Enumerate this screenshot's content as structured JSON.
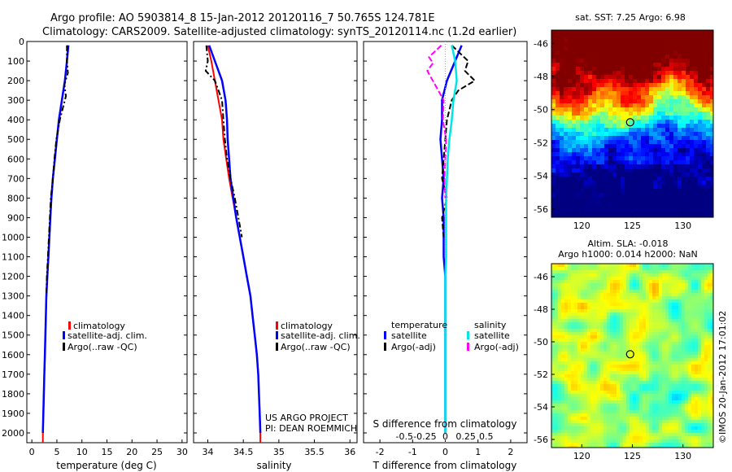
{
  "header": {
    "line1": "Argo profile: AO 5903814_8 15-Jan-2012 20120116_7 50.765S 124.781E",
    "line2": "Climatology: CARS2009. Satellite-adjusted climatology: synTS_20120114.nc (1.2d earlier)"
  },
  "colors": {
    "climatology": "#ff0000",
    "satellite": "#0000ff",
    "argo": "#000000",
    "salinity_satellite": "#00e5e5",
    "salinity_argo": "#ff00ff"
  },
  "depth_ticks": [
    "0",
    "100",
    "200",
    "300",
    "400",
    "500",
    "600",
    "700",
    "800",
    "900",
    "1000",
    "1100",
    "1200",
    "1300",
    "1400",
    "1500",
    "1600",
    "1700",
    "1800",
    "1900",
    "2000"
  ],
  "panels": {
    "temperature": {
      "xlabel": "temperature (deg C)",
      "xticks": [
        "0",
        "5",
        "10",
        "15",
        "20",
        "25",
        "30"
      ],
      "legend": [
        "climatology",
        "satellite-adj. clim.",
        "Argo(..raw -QC)"
      ]
    },
    "salinity": {
      "xlabel": "salinity",
      "xticks": [
        "34",
        "34.5",
        "35",
        "35.5",
        "36"
      ],
      "legend": [
        "climatology",
        "satellite-adj. clim.",
        "Argo(..raw -QC)"
      ],
      "credit1": "US ARGO PROJECT",
      "credit2": "PI: DEAN ROEMMICH"
    },
    "difference": {
      "xlabel": "T difference from climatology",
      "xticks": [
        "-2",
        "-1",
        "0",
        "1",
        "2"
      ],
      "top_label": "S difference from climatology",
      "top_ticks": [
        "-0.5",
        "-0.25",
        "0",
        "0.25",
        "0.5"
      ],
      "legend_t_title": "temperature",
      "legend_s_title": "salinity",
      "legend_t": [
        "satellite",
        "Argo(-adj)"
      ],
      "legend_s": [
        "satellite",
        "Argo(-adj)"
      ]
    }
  },
  "maps": {
    "sst_title": "sat. SST: 7.25  Argo: 6.98",
    "sla_title1": "Altim. SLA: -0.018",
    "sla_title2": "Argo h1000: 0.014  h2000: NaN",
    "lat_ticks": [
      "-46",
      "-48",
      "-50",
      "-52",
      "-54",
      "-56"
    ],
    "lon_ticks": [
      "120",
      "125",
      "130"
    ],
    "marker": {
      "lat": -50.765,
      "lon": 124.781
    }
  },
  "footer": "©IMOS 20-Jan-2012 17:01:02",
  "chart_data": [
    {
      "type": "line",
      "title": "",
      "xlabel": "temperature (deg C)",
      "ylabel": "",
      "xlim": [
        -1,
        31
      ],
      "ylim": [
        2050,
        0
      ],
      "series": [
        {
          "name": "climatology",
          "x": [
            7.2,
            7.0,
            6.6,
            6.0,
            5.5,
            5.0,
            4.6,
            4.2,
            3.9,
            3.7,
            3.5,
            3.3,
            3.1,
            2.9,
            2.8,
            2.7,
            2.6,
            2.5,
            2.4,
            2.3,
            2.2,
            2.2
          ],
          "y": [
            20,
            100,
            200,
            300,
            400,
            500,
            600,
            700,
            800,
            900,
            1000,
            1100,
            1200,
            1300,
            1400,
            1500,
            1600,
            1700,
            1800,
            1900,
            2000,
            2050
          ]
        },
        {
          "name": "satellite-adj. clim.",
          "x": [
            7.3,
            7.0,
            6.6,
            6.0,
            5.4,
            5.0,
            4.6,
            4.2,
            3.9,
            3.7,
            3.5,
            3.3,
            3.1,
            2.9,
            2.8,
            2.7,
            2.6,
            2.5,
            2.4,
            2.3,
            2.2
          ],
          "y": [
            20,
            100,
            200,
            300,
            400,
            500,
            600,
            700,
            800,
            900,
            1000,
            1100,
            1200,
            1300,
            1400,
            1500,
            1600,
            1700,
            1800,
            1900,
            2000
          ]
        },
        {
          "name": "Argo(..raw -QC)",
          "x": [
            7.0,
            7.0,
            7.2,
            6.5,
            6.8,
            5.6,
            4.9,
            4.5,
            4.2,
            3.8,
            3.6,
            3.4,
            3.2,
            3.0,
            2.9
          ],
          "y": [
            20,
            100,
            160,
            220,
            280,
            400,
            500,
            600,
            700,
            800,
            900,
            1000,
            1100,
            1200,
            1300
          ]
        }
      ]
    },
    {
      "type": "line",
      "title": "",
      "xlabel": "salinity",
      "ylabel": "",
      "xlim": [
        33.8,
        36.1
      ],
      "ylim": [
        2050,
        0
      ],
      "series": [
        {
          "name": "climatology",
          "x": [
            34.0,
            34.05,
            34.1,
            34.15,
            34.2,
            34.22,
            34.26,
            34.3,
            34.35,
            34.4,
            34.45,
            34.5,
            34.55,
            34.6,
            34.63,
            34.66,
            34.69,
            34.71,
            34.72,
            34.73,
            34.74,
            34.74
          ],
          "y": [
            20,
            100,
            200,
            300,
            400,
            500,
            600,
            700,
            800,
            900,
            1000,
            1100,
            1200,
            1300,
            1400,
            1500,
            1600,
            1700,
            1800,
            1900,
            2000,
            2050
          ]
        },
        {
          "name": "satellite-adj. clim.",
          "x": [
            34.02,
            34.1,
            34.2,
            34.25,
            34.27,
            34.28,
            34.3,
            34.32,
            34.36,
            34.4,
            34.45,
            34.5,
            34.55,
            34.6,
            34.63,
            34.66,
            34.69,
            34.71,
            34.72,
            34.73,
            34.74
          ],
          "y": [
            20,
            100,
            200,
            300,
            400,
            500,
            600,
            700,
            800,
            900,
            1000,
            1100,
            1200,
            1300,
            1400,
            1500,
            1600,
            1700,
            1800,
            1900,
            2000
          ]
        },
        {
          "name": "Argo(..raw -QC)",
          "x": [
            33.98,
            34.0,
            33.97,
            34.1,
            34.2,
            34.22,
            34.24,
            34.27,
            34.32,
            34.38,
            34.43,
            34.48
          ],
          "y": [
            20,
            100,
            150,
            200,
            300,
            400,
            500,
            600,
            700,
            800,
            900,
            1000
          ]
        }
      ]
    },
    {
      "type": "line",
      "title": "",
      "xlabel": "T difference from climatology",
      "ylabel": "",
      "xlim": [
        -2.5,
        2.5
      ],
      "ylim": [
        2050,
        0
      ],
      "series": [
        {
          "name": "temperature satellite",
          "x": [
            0.5,
            0.3,
            0.05,
            -0.1,
            -0.1,
            -0.15,
            -0.1,
            -0.05,
            -0.1,
            -0.05,
            -0.05,
            -0.05,
            0,
            0,
            0,
            0,
            0,
            0,
            0,
            0,
            0
          ],
          "y": [
            20,
            100,
            200,
            300,
            400,
            500,
            600,
            700,
            800,
            900,
            1000,
            1100,
            1200,
            1300,
            1400,
            1500,
            1600,
            1700,
            1800,
            1900,
            2000
          ]
        },
        {
          "name": "temperature Argo(-adj)",
          "x": [
            0.2,
            0.7,
            0.6,
            0.9,
            0.4,
            0.2,
            0.05,
            0.0,
            -0.05,
            -0.1,
            0.05,
            -0.1,
            -0.05
          ],
          "y": [
            20,
            100,
            150,
            200,
            250,
            300,
            400,
            500,
            600,
            700,
            800,
            900,
            1000
          ]
        },
        {
          "name": "salinity satellite",
          "x": [
            0.08,
            0.12,
            0.14,
            0.1,
            0.08,
            0.05,
            0.03,
            0.02,
            0.01,
            0.01,
            0.01,
            0.01,
            0,
            0,
            0,
            0,
            0,
            0,
            0,
            0,
            0
          ],
          "y": [
            20,
            100,
            200,
            300,
            400,
            500,
            600,
            700,
            800,
            900,
            1000,
            1100,
            1200,
            1300,
            1400,
            1500,
            1600,
            1700,
            1800,
            1900,
            2000
          ]
        },
        {
          "name": "salinity Argo(-adj)",
          "x": [
            -0.05,
            -0.2,
            -0.15,
            -0.22,
            -0.02,
            -0.03,
            0.01,
            0.0,
            -0.01,
            0.0
          ],
          "y": [
            20,
            80,
            110,
            150,
            300,
            400,
            500,
            600,
            700,
            800
          ]
        }
      ]
    },
    {
      "type": "heatmap",
      "title": "sat. SST: 7.25  Argo: 6.98",
      "xlabel": "",
      "ylabel": "",
      "xlim": [
        117,
        133
      ],
      "ylim": [
        -56.5,
        -45.2
      ]
    },
    {
      "type": "heatmap",
      "title": "Altim. SLA: -0.018",
      "xlabel": "",
      "ylabel": "",
      "xlim": [
        117,
        133
      ],
      "ylim": [
        -56.5,
        -45.2
      ]
    }
  ]
}
